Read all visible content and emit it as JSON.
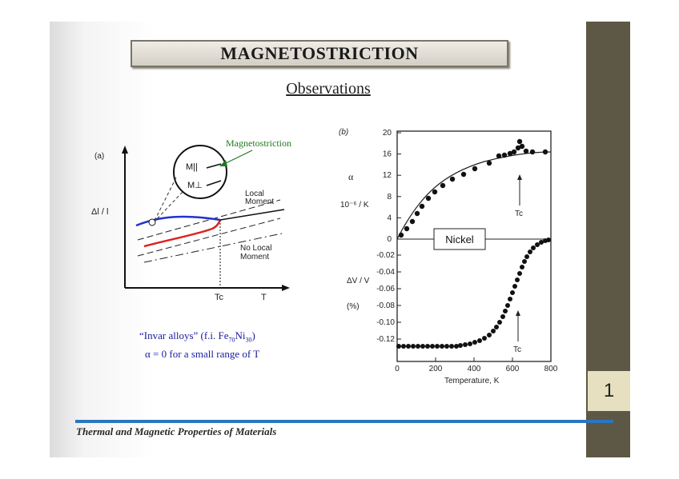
{
  "slide": {
    "title": "MAGNETOSTRICTION",
    "subtitle": "Observations",
    "page_number": "1",
    "footer": "Thermal and Magnetic Properties of Materials"
  },
  "left_figure": {
    "panel_label": "(a)",
    "y_axis_label": "Δl / l",
    "callout": "Magnetostriction",
    "m_parallel": "M||",
    "m_perp": "M⊥",
    "local_moment": "Local\nMoment",
    "no_local_moment": "No Local\nMoment",
    "tc_label": "Tc",
    "t_label": "T",
    "caption_line1_a": "“Invar alloys” (f.i. Fe",
    "caption_line1_sub1": "70",
    "caption_line1_b": "Ni",
    "caption_line1_sub2": "30",
    "caption_line1_c": ")",
    "caption_line2": "α = 0 for a small range of T"
  },
  "right_figure": {
    "panel_label": "(b)",
    "alpha_label": "α",
    "alpha_units": "10⁻⁶ / K",
    "dv_label": "ΔV / V",
    "dv_units": "(%)",
    "material": "Nickel",
    "x_axis_label": "Temperature, K",
    "tc_label": "Tc",
    "top_ticks": [
      "20",
      "16",
      "12",
      "8",
      "4",
      "0"
    ],
    "bottom_ticks": [
      "-0.02",
      "-0.04",
      "-0.06",
      "-0.08",
      "-0.10",
      "-0.12"
    ],
    "x_ticks": [
      "0",
      "200",
      "400",
      "600",
      "800"
    ]
  },
  "colors": {
    "sidebar": "#5d5745",
    "page_tab": "#e6e0c0",
    "rule": "#2a76c0",
    "callout": "#1d7a1d",
    "caption": "#1a1aa0",
    "curve_blue": "#2233cc",
    "curve_red": "#dd2222"
  }
}
